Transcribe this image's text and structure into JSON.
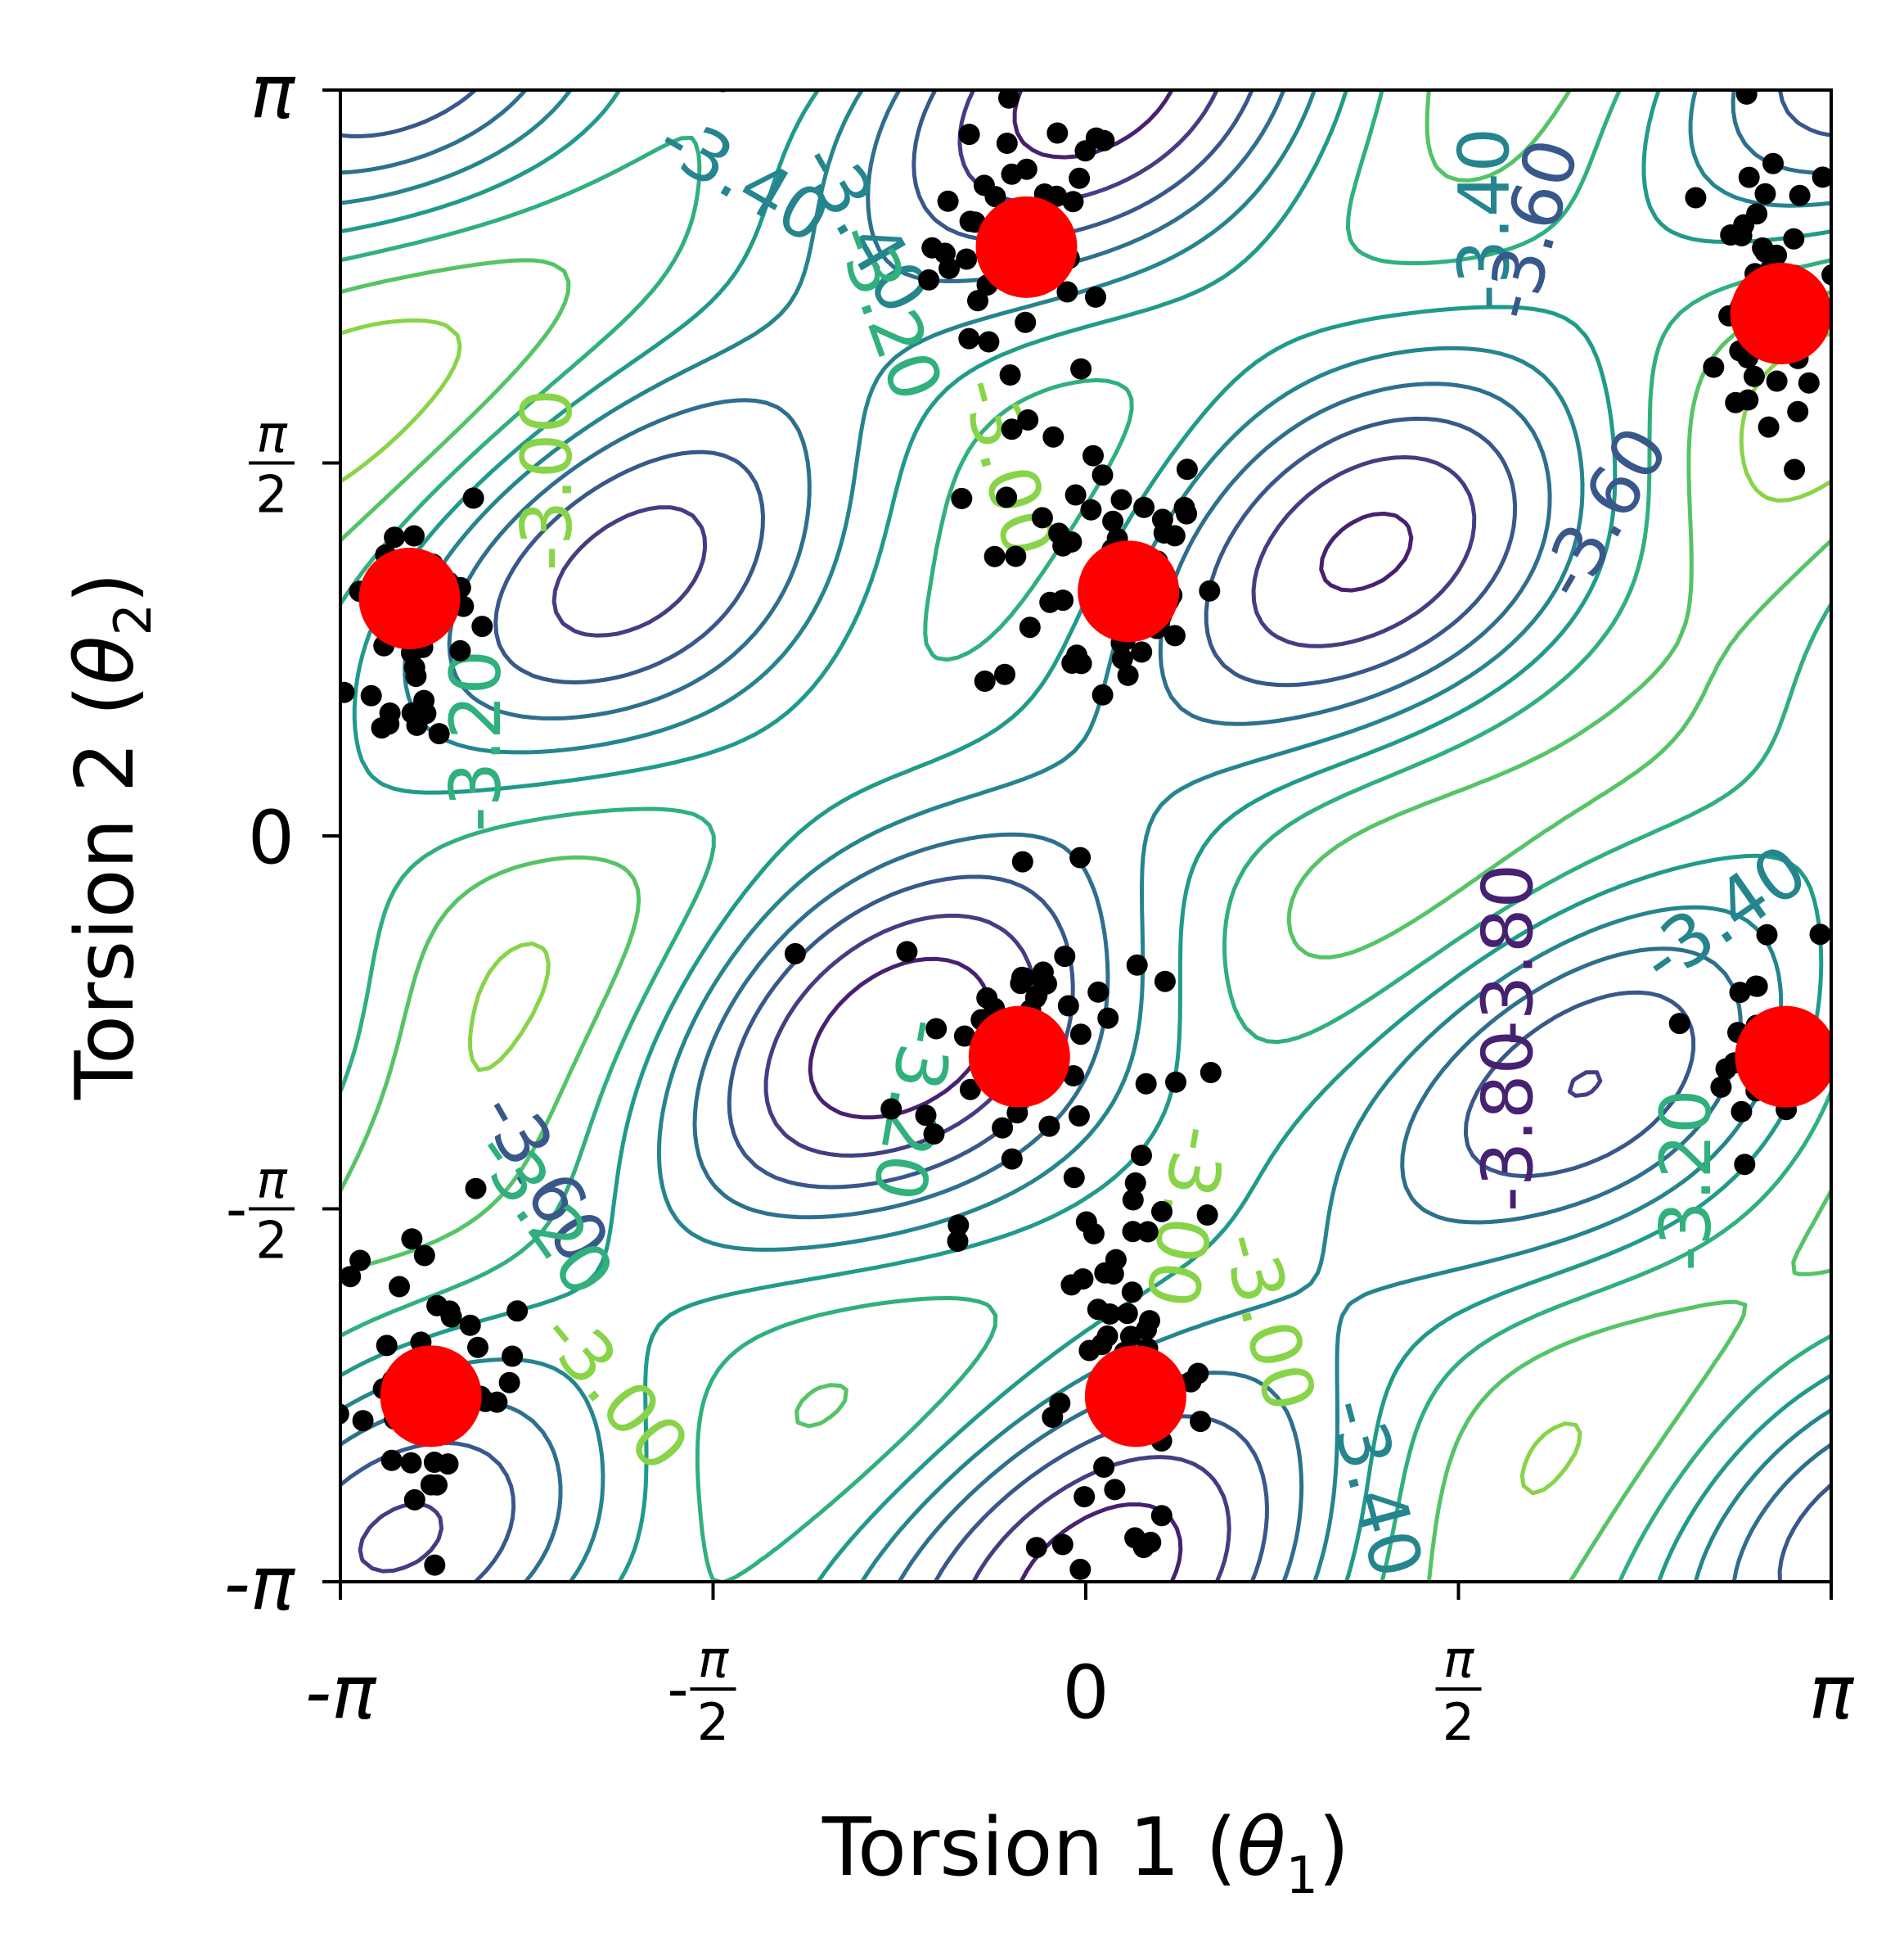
{
  "chart_data": {
    "type": "contour_scatter",
    "xlabel": {
      "pre": "Torsion 1 (",
      "var": "θ",
      "sub": "1",
      "post": ")"
    },
    "ylabel": {
      "pre": "Torsion 2 (",
      "var": "θ",
      "sub": "2",
      "post": ")"
    },
    "xlim": [
      -3.14159,
      3.14159
    ],
    "ylim": [
      -3.14159,
      3.14159
    ],
    "x_ticks": [
      {
        "value": -3.14159,
        "kind": "plain",
        "text": "-π"
      },
      {
        "value": -1.5708,
        "kind": "frac",
        "sign": "-",
        "num": "π",
        "den": "2"
      },
      {
        "value": 0,
        "kind": "plain",
        "text": "0"
      },
      {
        "value": 1.5708,
        "kind": "frac",
        "sign": "",
        "num": "π",
        "den": "2"
      },
      {
        "value": 3.14159,
        "kind": "plain",
        "text": "π"
      }
    ],
    "y_ticks": [
      {
        "value": -3.14159,
        "kind": "plain",
        "text": "-π"
      },
      {
        "value": -1.5708,
        "kind": "frac",
        "sign": "-",
        "num": "π",
        "den": "2"
      },
      {
        "value": 0,
        "kind": "plain",
        "text": "0"
      },
      {
        "value": 1.5708,
        "kind": "frac",
        "sign": "",
        "num": "π",
        "den": "2"
      },
      {
        "value": 3.14159,
        "kind": "plain",
        "text": "π"
      }
    ],
    "contour_levels": [
      -3.9,
      -3.8,
      -3.7,
      -3.6,
      -3.5,
      -3.4,
      -3.3,
      -3.2,
      -3.1,
      -3.0,
      -2.9,
      -2.8
    ],
    "colormap": "viridis",
    "contour_labels": [
      {
        "text": "-3.40",
        "x": -1.45,
        "y": 2.75,
        "rot": 30
      },
      {
        "text": "-3.40",
        "x": -0.95,
        "y": 2.55,
        "rot": 60
      },
      {
        "text": "-3.20",
        "x": -0.85,
        "y": 2.2,
        "rot": 70
      },
      {
        "text": "-3.00",
        "x": -0.35,
        "y": 1.55,
        "rot": 75
      },
      {
        "text": "-3.00",
        "x": -2.25,
        "y": 1.5,
        "rot": -90
      },
      {
        "text": "-3.20",
        "x": -2.55,
        "y": 0.4,
        "rot": -90
      },
      {
        "text": "-3.40",
        "x": 1.7,
        "y": 2.6,
        "rot": -90
      },
      {
        "text": "-3.60",
        "x": 1.9,
        "y": 2.55,
        "rot": -75
      },
      {
        "text": "-3.60",
        "x": 2.2,
        "y": 1.35,
        "rot": -60
      },
      {
        "text": "-3.80",
        "x": 1.8,
        "y": -0.5,
        "rot": -90
      },
      {
        "text": "-3.80",
        "x": 1.8,
        "y": -1.2,
        "rot": -90
      },
      {
        "text": "-3.40",
        "x": 2.7,
        "y": -0.35,
        "rot": -35
      },
      {
        "text": "-3.20",
        "x": 2.55,
        "y": -1.45,
        "rot": -90
      },
      {
        "text": "-3.20",
        "x": -0.75,
        "y": -1.15,
        "rot": 100
      },
      {
        "text": "-3.00",
        "x": 0.4,
        "y": -1.6,
        "rot": 100
      },
      {
        "text": "-3.00",
        "x": 0.75,
        "y": -2.05,
        "rot": 75
      },
      {
        "text": "-3.40",
        "x": 1.2,
        "y": -2.75,
        "rot": 75
      },
      {
        "text": "-3.60",
        "x": -2.3,
        "y": -1.45,
        "rot": 60
      },
      {
        "text": "-3.20",
        "x": -2.3,
        "y": -1.6,
        "rot": 55
      },
      {
        "text": "-3.00",
        "x": -2.0,
        "y": -2.35,
        "rot": 50
      }
    ],
    "centers": [
      {
        "x": -0.25,
        "y": 2.48
      },
      {
        "x": 2.93,
        "y": 2.2
      },
      {
        "x": 0.18,
        "y": 1.03
      },
      {
        "x": -2.85,
        "y": 1.0
      },
      {
        "x": -0.28,
        "y": -0.93
      },
      {
        "x": 2.95,
        "y": -0.93
      },
      {
        "x": -2.76,
        "y": -2.36
      },
      {
        "x": 0.21,
        "y": -2.36
      }
    ],
    "sample_clusters": [
      {
        "x": -0.25,
        "y": 2.5,
        "n": 45,
        "sx": 0.2,
        "sy": 0.3
      },
      {
        "x": 2.88,
        "y": 2.25,
        "n": 38,
        "sx": 0.15,
        "sy": 0.35
      },
      {
        "x": 0.05,
        "y": 1.1,
        "n": 55,
        "sx": 0.25,
        "sy": 0.3
      },
      {
        "x": -2.8,
        "y": 0.9,
        "n": 34,
        "sx": 0.15,
        "sy": 0.35
      },
      {
        "x": -0.25,
        "y": -0.9,
        "n": 55,
        "sx": 0.28,
        "sy": 0.35
      },
      {
        "x": 2.85,
        "y": -0.85,
        "n": 18,
        "sx": 0.12,
        "sy": 0.25
      },
      {
        "x": -2.75,
        "y": -2.3,
        "n": 42,
        "sx": 0.2,
        "sy": 0.35
      },
      {
        "x": 0.15,
        "y": -2.35,
        "n": 45,
        "sx": 0.18,
        "sy": 0.35
      }
    ]
  }
}
